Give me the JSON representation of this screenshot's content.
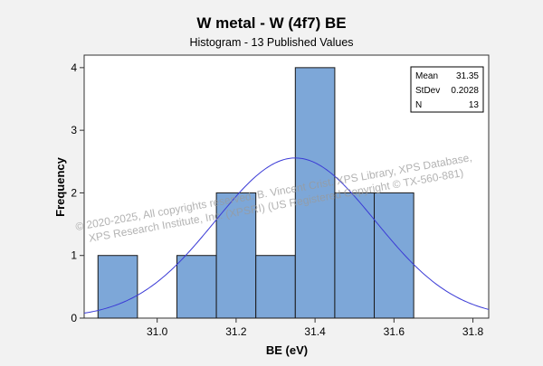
{
  "chart_data": {
    "type": "bar",
    "title": "W metal - W (4f7) BE",
    "subtitle": "Histogram - 13 Published Values",
    "xlabel": "BE (eV)",
    "ylabel": "Frequency",
    "x_ticks": [
      31.0,
      31.2,
      31.4,
      31.6,
      31.8
    ],
    "x_tick_labels": [
      "31.0",
      "31.2",
      "31.4",
      "31.6",
      "31.8"
    ],
    "y_ticks": [
      0,
      1,
      2,
      3,
      4
    ],
    "y_tick_labels": [
      "0",
      "1",
      "2",
      "3",
      "4"
    ],
    "xlim": [
      30.815,
      31.84
    ],
    "ylim": [
      0,
      4.2
    ],
    "bin_width": 0.1,
    "bins": [
      {
        "center": 30.9,
        "count": 1
      },
      {
        "center": 31.0,
        "count": 0
      },
      {
        "center": 31.1,
        "count": 1
      },
      {
        "center": 31.2,
        "count": 2
      },
      {
        "center": 31.3,
        "count": 1
      },
      {
        "center": 31.4,
        "count": 4
      },
      {
        "center": 31.5,
        "count": 2
      },
      {
        "center": 31.6,
        "count": 2
      }
    ],
    "normal_fit": {
      "mean": 31.35,
      "stdev": 0.2028,
      "n": 13
    },
    "stats_box": {
      "position": "top-right",
      "rows": [
        {
          "label": "Mean",
          "value": "31.35"
        },
        {
          "label": "StDev",
          "value": "0.2028"
        },
        {
          "label": "N",
          "value": "13"
        }
      ]
    },
    "grid": false,
    "colors": {
      "bar_fill": "#7da7d8",
      "bar_stroke": "#1a1a1a",
      "curve": "#3b3bd6",
      "background": "#f2f2f2",
      "plot_bg": "#ffffff"
    }
  },
  "watermark": {
    "line1": "© 2020-2025,  All copyrights reserved.   B. Vincent Crist.  XPS Library, XPS Database,",
    "line2": "XPS Research Institute, Inc. (XPSRI)   (US Registered Copyright © TX-560-881)"
  }
}
